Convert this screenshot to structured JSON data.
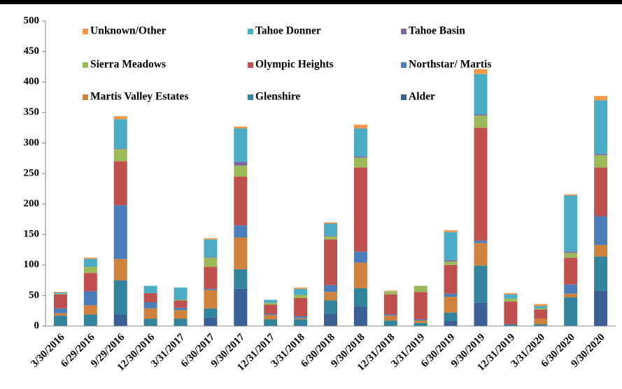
{
  "chart_data": {
    "type": "stacked_bar",
    "categories": [
      "3/30/2016",
      "6/29/2016",
      "9/29/2016",
      "12/30/2016",
      "3/31/2017",
      "6/30/2017",
      "9/30/2017",
      "12/31/2017",
      "3/31/2018",
      "6/30/2018",
      "9/30/2018",
      "12/31/2018",
      "3/31/2019",
      "6/30/2019",
      "9/30/2019",
      "12/31/2019",
      "3/31/2020",
      "6/30/2020",
      "9/30/2020"
    ],
    "series": [
      {
        "name": "Alder",
        "color": "#3a5f95",
        "values": [
          0,
          0,
          19,
          0,
          0,
          14,
          61,
          0,
          0,
          20,
          32,
          0,
          0,
          8,
          38,
          0,
          0,
          0,
          58
        ]
      },
      {
        "name": "Glenshire",
        "color": "#31849b",
        "values": [
          17,
          19,
          56,
          12,
          12,
          15,
          32,
          11,
          11,
          22,
          30,
          9,
          5,
          14,
          61,
          3,
          3,
          47,
          56
        ]
      },
      {
        "name": "Martis Valley Estates",
        "color": "#d0813c",
        "values": [
          4,
          15,
          35,
          17,
          14,
          30,
          52,
          7,
          2,
          14,
          42,
          8,
          4,
          26,
          37,
          0,
          9,
          6,
          19
        ]
      },
      {
        "name": "Northstar/ Martis",
        "color": "#4a7ebb",
        "values": [
          8,
          23,
          88,
          10,
          4,
          2,
          20,
          2,
          3,
          11,
          18,
          2,
          2,
          5,
          4,
          0,
          0,
          15,
          47
        ]
      },
      {
        "name": "Olympic Heights",
        "color": "#c0504d",
        "values": [
          23,
          30,
          72,
          15,
          12,
          36,
          80,
          15,
          30,
          75,
          138,
          33,
          45,
          47,
          185,
          37,
          15,
          44,
          80
        ]
      },
      {
        "name": "Sierra Meadows",
        "color": "#9bbb59",
        "values": [
          1,
          10,
          20,
          0,
          1,
          15,
          18,
          3,
          5,
          5,
          16,
          5,
          10,
          6,
          20,
          5,
          2,
          8,
          20
        ]
      },
      {
        "name": "Tahoe Basin",
        "color": "#8064a2",
        "values": [
          0,
          0,
          1,
          0,
          0,
          1,
          6,
          0,
          0,
          1,
          2,
          0,
          0,
          2,
          2,
          0,
          0,
          2,
          2
        ]
      },
      {
        "name": "Tahoe Donner",
        "color": "#4bacc6",
        "values": [
          2,
          13,
          48,
          12,
          20,
          29,
          55,
          5,
          10,
          20,
          46,
          0,
          0,
          46,
          66,
          7,
          4,
          92,
          88
        ]
      },
      {
        "name": "Unknown/Other",
        "color": "#f79646",
        "values": [
          1,
          2,
          5,
          0,
          0,
          2,
          3,
          0,
          2,
          2,
          6,
          1,
          0,
          3,
          8,
          2,
          3,
          2,
          7
        ]
      }
    ],
    "ylim": [
      0,
      500
    ],
    "yticks": [
      0,
      50,
      100,
      150,
      200,
      250,
      300,
      350,
      400,
      450,
      500
    ],
    "grid": false
  }
}
